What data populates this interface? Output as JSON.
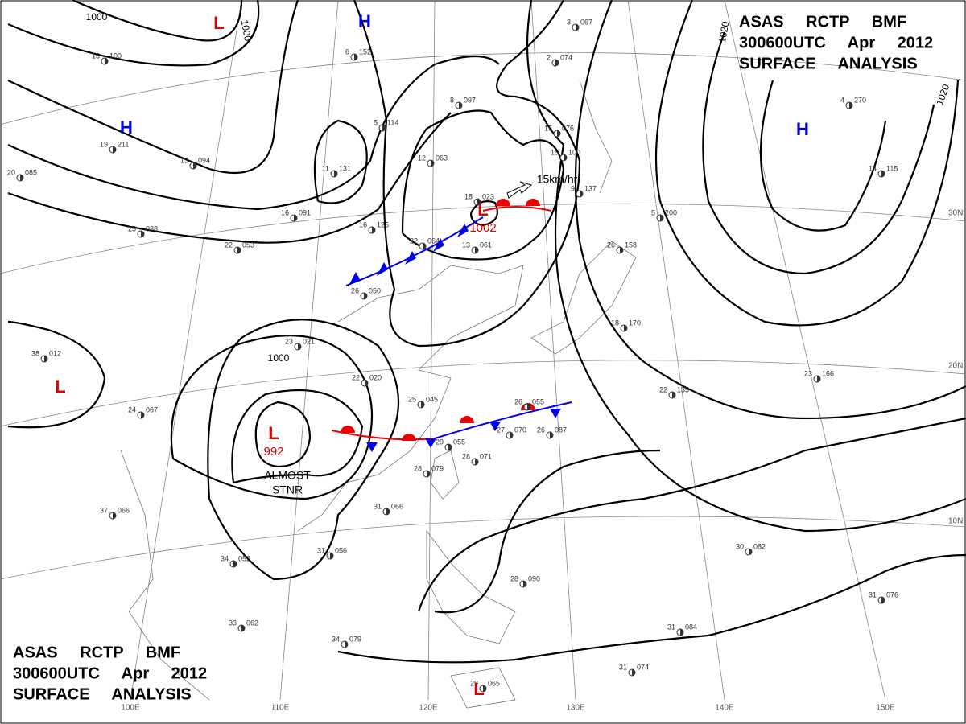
{
  "header": {
    "lines": [
      "ASAS RCTP BMF",
      "300600UTC Apr 2012",
      "SURFACE ANALYSIS"
    ]
  },
  "footer": {
    "lines": [
      "ASAS RCTP BMF",
      "300600UTC Apr 2012",
      "SURFACE ANALYSIS"
    ]
  },
  "centers": [
    {
      "type": "H"
    },
    {
      "type": "H"
    },
    {
      "type": "H"
    },
    {
      "type": "L"
    },
    {
      "type": "L"
    },
    {
      "type": "L",
      "value": "992"
    },
    {
      "type": "L",
      "value": "1002"
    },
    {
      "type": "L"
    }
  ],
  "isobar_labels": [
    "1000",
    "1000",
    "1020",
    "1020",
    "1000"
  ],
  "annotations": [
    "ALMOST",
    "STNR",
    "15km/hr"
  ],
  "latitudes": [
    "30N",
    "20N",
    "10N"
  ],
  "longitudes": [
    "100E",
    "110E",
    "120E",
    "130E",
    "140E",
    "150E"
  ],
  "stations": [
    {
      "t": "18",
      "p": "023"
    },
    {
      "t": "12",
      "p": "063"
    },
    {
      "t": "8",
      "p": "097"
    },
    {
      "t": "25",
      "p": "038"
    },
    {
      "t": "22",
      "p": "053"
    },
    {
      "t": "16",
      "p": "091"
    },
    {
      "t": "16",
      "p": "125"
    },
    {
      "t": "22",
      "p": "064"
    },
    {
      "t": "13",
      "p": "061"
    },
    {
      "t": "26",
      "p": "050"
    },
    {
      "t": "23",
      "p": "021"
    },
    {
      "t": "22",
      "p": "020"
    },
    {
      "t": "25",
      "p": "045"
    },
    {
      "t": "29",
      "p": "055"
    },
    {
      "t": "27",
      "p": "070"
    },
    {
      "t": "26",
      "p": "087"
    },
    {
      "t": "26",
      "p": "055"
    },
    {
      "t": "24",
      "p": "067"
    },
    {
      "t": "38",
      "p": "012"
    },
    {
      "t": "37",
      "p": "066"
    },
    {
      "t": "34",
      "p": "052"
    },
    {
      "t": "31",
      "p": "056"
    },
    {
      "t": "31",
      "p": "066"
    },
    {
      "t": "28",
      "p": "079"
    },
    {
      "t": "28",
      "p": "071"
    },
    {
      "t": "30",
      "p": "082"
    },
    {
      "t": "31",
      "p": "076"
    },
    {
      "t": "31",
      "p": "084"
    },
    {
      "t": "31",
      "p": "074"
    },
    {
      "t": "28",
      "p": "090"
    },
    {
      "t": "33",
      "p": "062"
    },
    {
      "t": "34",
      "p": "079"
    },
    {
      "t": "29",
      "p": "065"
    },
    {
      "t": "23",
      "p": "166"
    },
    {
      "t": "22",
      "p": "135"
    },
    {
      "t": "18",
      "p": "170"
    },
    {
      "t": "26",
      "p": "158"
    },
    {
      "t": "5",
      "p": "200"
    },
    {
      "t": "9",
      "p": "137"
    },
    {
      "t": "15",
      "p": "076"
    },
    {
      "t": "15",
      "p": "100"
    },
    {
      "t": "14",
      "p": "115"
    },
    {
      "t": "4",
      "p": "270"
    },
    {
      "t": "19",
      "p": "211"
    },
    {
      "t": "20",
      "p": "085"
    },
    {
      "t": "15",
      "p": "100"
    },
    {
      "t": "13",
      "p": "094"
    },
    {
      "t": "11",
      "p": "131"
    },
    {
      "t": "5",
      "p": "114"
    },
    {
      "t": "6",
      "p": "152"
    },
    {
      "t": "2",
      "p": "074"
    },
    {
      "t": "3",
      "p": "067"
    }
  ]
}
